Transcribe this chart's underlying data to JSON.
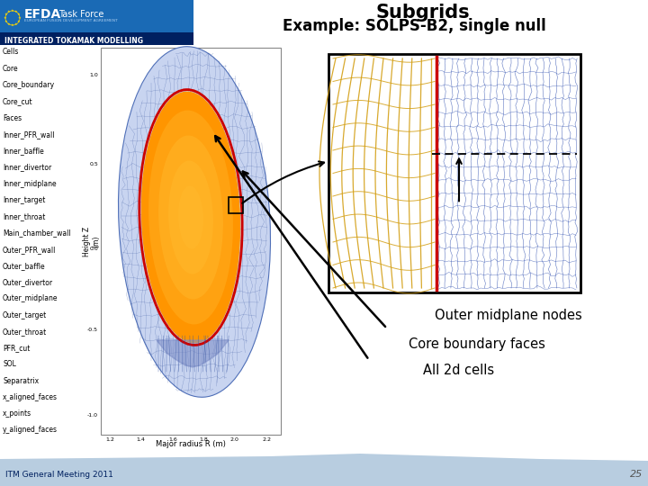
{
  "title_line1": "Subgrids",
  "title_line2": "Example: SOLPS-B2, single null",
  "bg_color": "#ffffff",
  "header_bg_top": "#1a6ab5",
  "header_bg_bot": "#003a80",
  "efda_blue": "#003580",
  "left_items": [
    "Cells",
    "Core",
    "Core_boundary",
    "Core_cut",
    "Faces",
    "Inner_PFR_wall",
    "Inner_baffle",
    "Inner_divertor",
    "Inner_midplane",
    "Inner_target",
    "Inner_throat",
    "Main_chamber_wall",
    "Outer_PFR_wall",
    "Outer_baffle",
    "Outer_divertor",
    "Outer_midplane",
    "Outer_target",
    "Outer_throat",
    "PFR_cut",
    "SOL",
    "Separatrix",
    "x_aligned_faces",
    "x_points",
    "y_aligned_faces"
  ],
  "annotation1": "Outer midplane nodes",
  "annotation2": "Core boundary faces",
  "annotation3": "All 2d cells",
  "footer_text": "ITM General Meeting 2011",
  "page_number": "25",
  "footer_bg": "#b8cde0"
}
